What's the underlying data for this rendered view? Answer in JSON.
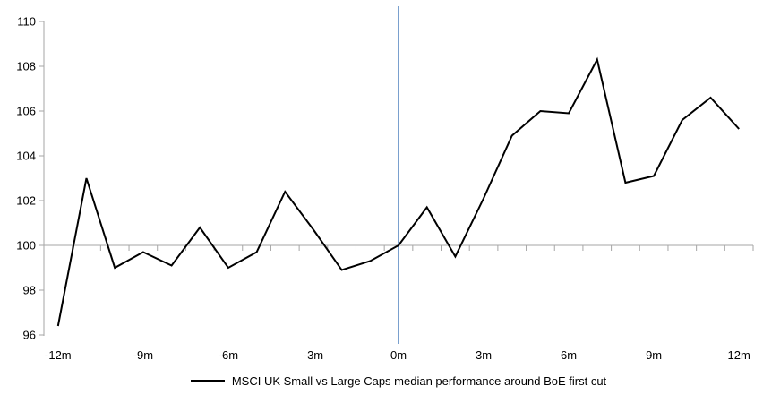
{
  "chart_data": {
    "type": "line",
    "title": "",
    "x": [
      -12,
      -11,
      -10,
      -9,
      -8,
      -7,
      -6,
      -5,
      -4,
      -3,
      -2,
      -1,
      0,
      1,
      2,
      3,
      4,
      5,
      6,
      7,
      8,
      9,
      10,
      11,
      12
    ],
    "series": [
      {
        "name": "MSCI UK Small vs Large Caps median performance around BoE first cut",
        "color": "#000000",
        "values": [
          96.4,
          103.0,
          99.0,
          99.7,
          99.1,
          100.8,
          99.0,
          99.7,
          102.4,
          100.7,
          98.9,
          99.3,
          100.0,
          101.7,
          99.5,
          102.1,
          104.9,
          106.0,
          105.9,
          108.3,
          102.8,
          103.1,
          105.6,
          106.6,
          105.2
        ]
      }
    ],
    "xlim": [
      -12.5,
      12.5
    ],
    "ylim": [
      96,
      110
    ],
    "y_axis": {
      "ticks": [
        96,
        98,
        100,
        102,
        104,
        106,
        108,
        110
      ]
    },
    "x_axis": {
      "ticks": [
        {
          "value": -12,
          "label": "-12m"
        },
        {
          "value": -9,
          "label": "-9m"
        },
        {
          "value": -6,
          "label": "-6m"
        },
        {
          "value": -3,
          "label": "-3m"
        },
        {
          "value": 0,
          "label": "0m"
        },
        {
          "value": 3,
          "label": "3m"
        },
        {
          "value": 6,
          "label": "6m"
        },
        {
          "value": 9,
          "label": "9m"
        },
        {
          "value": 12,
          "label": "12m"
        }
      ],
      "minor_tick_step": 1
    },
    "baseline_value": 100,
    "event_line": {
      "x": 0,
      "color": "#4f81bd"
    },
    "axis_color": "#a6a6a6",
    "text_color": "#000000",
    "background": "#ffffff",
    "grid": false,
    "legend_position": "bottom"
  }
}
